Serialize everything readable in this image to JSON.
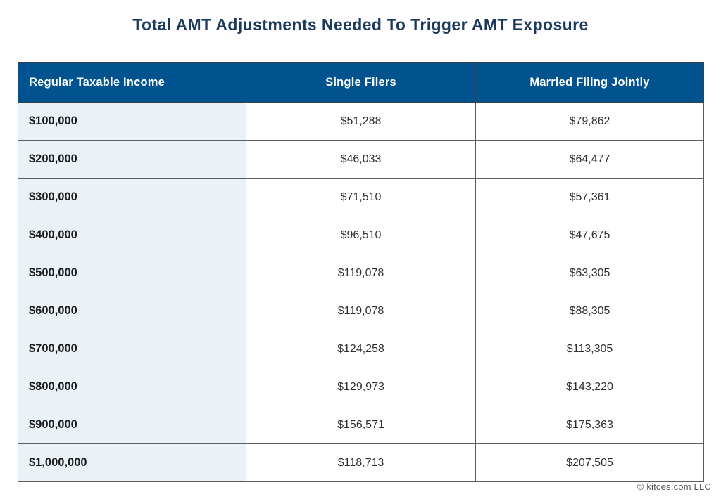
{
  "title": "Total AMT Adjustments Needed To Trigger AMT Exposure",
  "footer": {
    "copyright": "© kitces.com LLC"
  },
  "colors": {
    "header_bg": "#00538f",
    "row_label_bg": "#eaf2f8",
    "title_text": "#1b3a5e"
  },
  "chart_data": {
    "type": "table",
    "title": "Total AMT Adjustments Needed To Trigger AMT Exposure",
    "columns": [
      "Regular Taxable Income",
      "Single Filers",
      "Married Filing Jointly"
    ],
    "rows": [
      [
        "$100,000",
        "$51,288",
        "$79,862"
      ],
      [
        "$200,000",
        "$46,033",
        "$64,477"
      ],
      [
        "$300,000",
        "$71,510",
        "$57,361"
      ],
      [
        "$400,000",
        "$96,510",
        "$47,675"
      ],
      [
        "$500,000",
        "$119,078",
        "$63,305"
      ],
      [
        "$600,000",
        "$119,078",
        "$88,305"
      ],
      [
        "$700,000",
        "$124,258",
        "$113,305"
      ],
      [
        "$800,000",
        "$129,973",
        "$143,220"
      ],
      [
        "$900,000",
        "$156,571",
        "$175,363"
      ],
      [
        "$1,000,000",
        "$118,713",
        "$207,505"
      ]
    ]
  }
}
